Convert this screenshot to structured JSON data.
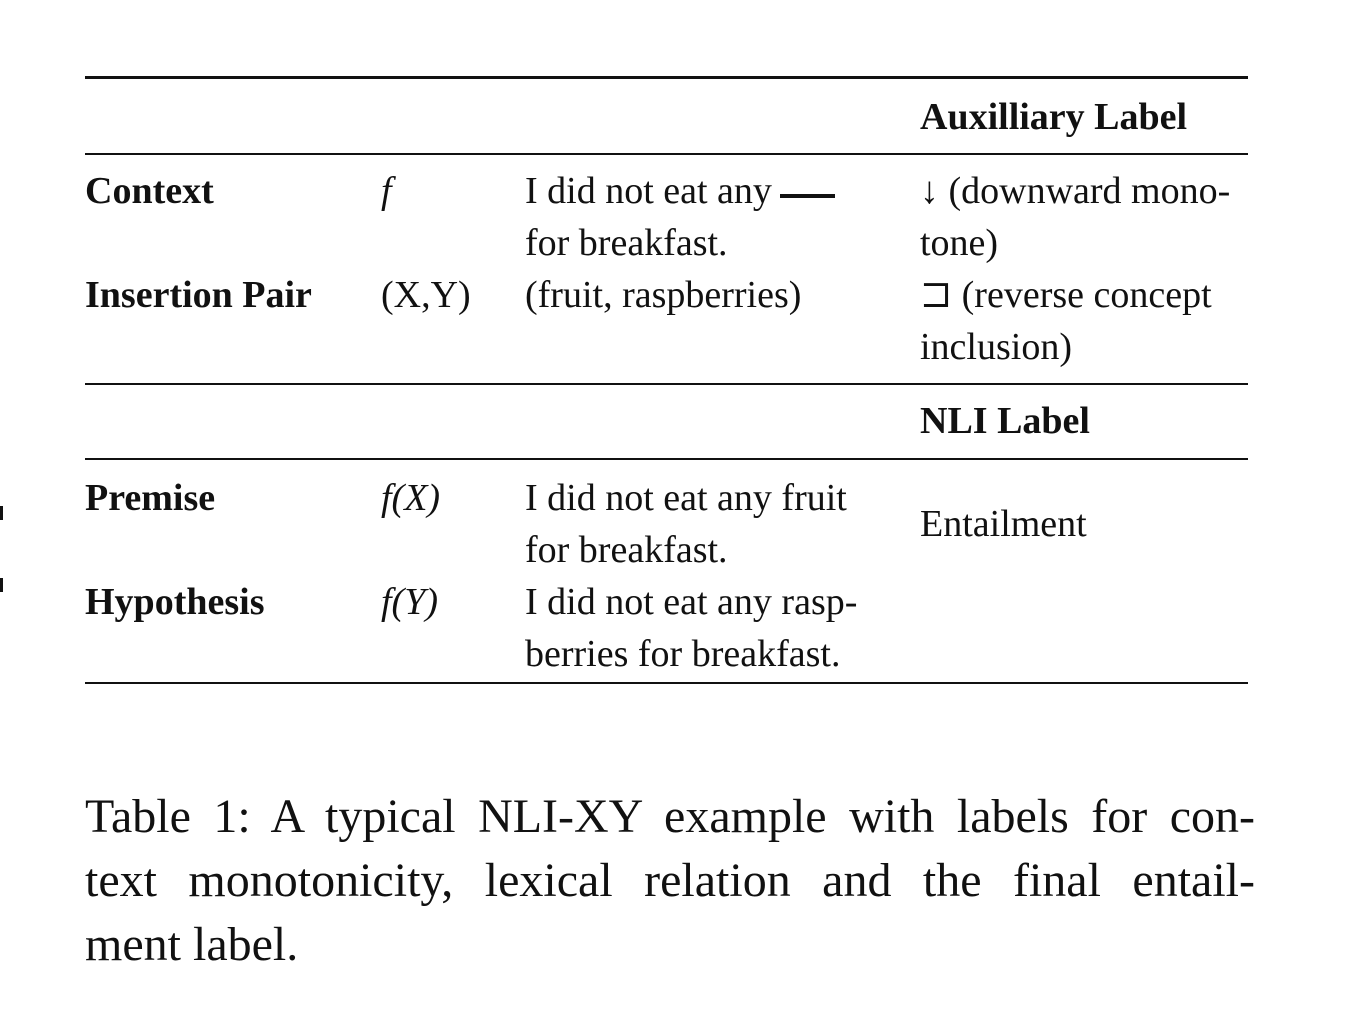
{
  "table": {
    "aux_header": "Auxilliary Label",
    "nli_header": "NLI Label",
    "rows_top": [
      {
        "label": "Context",
        "symbol": "f",
        "text_line1": "I did not eat any",
        "text_line2": "for breakfast.",
        "aux_line1": "↓ (downward mono-",
        "aux_line2": "tone)"
      },
      {
        "label": "Insertion Pair",
        "symbol": "(X,Y)",
        "text_line1": "(fruit, raspberries)",
        "aux_line1": "⊐ (reverse concept",
        "aux_line2": "inclusion)"
      }
    ],
    "rows_bottom": [
      {
        "label": "Premise",
        "symbol": "f(X)",
        "text_line1": "I did not eat any fruit",
        "text_line2": "for breakfast."
      },
      {
        "label": "Hypothesis",
        "symbol": "f(Y)",
        "text_line1": "I did not eat any rasp-",
        "text_line2": "berries for breakfast."
      }
    ],
    "nli_value": "Entailment"
  },
  "caption": {
    "line1": "Table 1: A typical NLI-XY example with labels for con-",
    "line2": "text monotonicity, lexical relation and the final entail-",
    "line3": "ment label."
  }
}
